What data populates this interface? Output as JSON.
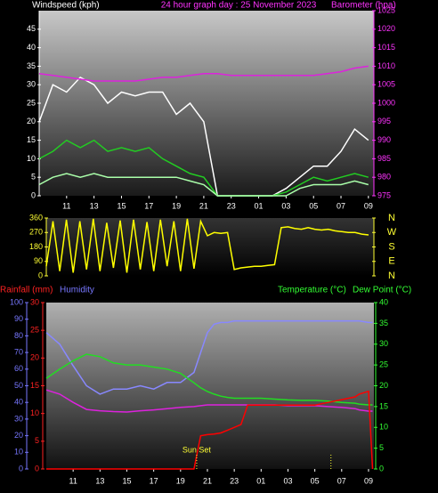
{
  "chart_data": [
    {
      "type": "line",
      "y_label": "Windspeed (kph)",
      "title": "24 hour graph day : 25 November 2023",
      "y2_label": "Barometer (hpa)",
      "x": [
        0,
        1,
        2,
        3,
        4,
        5,
        6,
        7,
        8,
        9,
        10,
        11,
        12,
        13,
        14,
        15,
        16,
        17,
        18,
        19,
        20,
        21,
        22,
        23,
        24
      ],
      "xlim": [
        0,
        24.4
      ],
      "xticks": [
        {
          "value": 2,
          "label": "11"
        },
        {
          "value": 4,
          "label": "13"
        },
        {
          "value": 6,
          "label": "15"
        },
        {
          "value": 8,
          "label": "17"
        },
        {
          "value": 10,
          "label": "19"
        },
        {
          "value": 12,
          "label": "21"
        },
        {
          "value": 14,
          "label": "23"
        },
        {
          "value": 16,
          "label": "01"
        },
        {
          "value": 18,
          "label": "03"
        },
        {
          "value": 20,
          "label": "05"
        },
        {
          "value": 22,
          "label": "07"
        },
        {
          "value": 24,
          "label": "09"
        }
      ],
      "ylim": [
        0,
        50
      ],
      "yticks": [
        0,
        5,
        10,
        15,
        20,
        25,
        30,
        35,
        40,
        45
      ],
      "ycolor": "#ffffff",
      "y2lim": [
        975,
        1025
      ],
      "y2ticks": [
        975,
        980,
        985,
        990,
        995,
        1000,
        1005,
        1010,
        1015,
        1020,
        1025
      ],
      "y2color": "#ff33ff",
      "series": [
        {
          "color": "#ffffff",
          "values": [
            20,
            30,
            28,
            32,
            30,
            25,
            28,
            27,
            28,
            28,
            22,
            25,
            20,
            0,
            0,
            0,
            0,
            0,
            2,
            5,
            8,
            8,
            12,
            18,
            15
          ]
        },
        {
          "color": "#22cc22",
          "values": [
            10,
            12,
            15,
            13,
            15,
            12,
            13,
            12,
            13,
            10,
            8,
            6,
            5,
            0,
            0,
            0,
            0,
            0,
            1,
            3,
            5,
            4,
            5,
            6,
            5
          ]
        },
        {
          "color": "#aaffaa",
          "values": [
            3,
            5,
            6,
            5,
            6,
            5,
            5,
            5,
            5,
            5,
            5,
            4,
            3,
            0,
            0,
            0,
            0,
            0,
            0,
            2,
            3,
            3,
            3,
            4,
            3
          ]
        },
        {
          "color": "#dd22dd",
          "axis": "y2",
          "values": [
            1008,
            1007.5,
            1007,
            1006.5,
            1006,
            1006,
            1006,
            1006,
            1006.5,
            1007,
            1007,
            1007.5,
            1008,
            1008,
            1007.5,
            1007.5,
            1007.5,
            1007.5,
            1007.5,
            1007.5,
            1007.5,
            1008,
            1008.5,
            1009.5,
            1010
          ]
        }
      ]
    },
    {
      "type": "line",
      "x": [
        0,
        0.5,
        1,
        1.5,
        2,
        2.5,
        3,
        3.5,
        4,
        4.5,
        5,
        5.5,
        6,
        6.5,
        7,
        7.5,
        8,
        8.5,
        9,
        9.5,
        10,
        10.5,
        11,
        11.5,
        12,
        12.5,
        13,
        13.5,
        14,
        14.5,
        15,
        15.5,
        16,
        16.5,
        17,
        17.5,
        18,
        18.5,
        19,
        19.5,
        20,
        20.5,
        21,
        21.5,
        22,
        22.5,
        23,
        23.5,
        24
      ],
      "xlim": [
        0,
        24.4
      ],
      "ylim": [
        0,
        360
      ],
      "yticks": [
        0,
        90,
        180,
        270,
        360
      ],
      "ycolor": "#ffff33",
      "y2lim": [
        0,
        360
      ],
      "y2ticks": [
        {
          "value": 0,
          "label": "N"
        },
        {
          "value": 90,
          "label": "E"
        },
        {
          "value": 180,
          "label": "S"
        },
        {
          "value": 270,
          "label": "W"
        },
        {
          "value": 360,
          "label": "N"
        }
      ],
      "y2color": "#ffff33",
      "series": [
        {
          "color": "#ffff00",
          "values": [
            60,
            340,
            30,
            350,
            20,
            340,
            40,
            355,
            30,
            330,
            50,
            345,
            20,
            350,
            40,
            335,
            30,
            350,
            60,
            340,
            30,
            355,
            45,
            340,
            250,
            270,
            265,
            270,
            40,
            50,
            55,
            60,
            60,
            65,
            70,
            300,
            305,
            295,
            290,
            300,
            290,
            285,
            290,
            280,
            275,
            270,
            270,
            260,
            255
          ]
        }
      ]
    },
    {
      "type": "line",
      "y_label": "Humidity",
      "y3_label": "Rainfall (mm)",
      "y2_label": "Temperature (°C)",
      "y2_label_b": "Dew Point (°C)",
      "x": [
        0,
        1,
        2,
        3,
        4,
        5,
        6,
        7,
        8,
        9,
        10,
        11,
        11.5,
        12,
        12.5,
        13,
        13.5,
        14,
        14.5,
        15,
        16,
        17,
        18,
        19,
        20,
        21,
        22,
        23,
        23.3,
        24,
        24.3
      ],
      "xlim": [
        0,
        24.4
      ],
      "xticks": [
        {
          "value": 2,
          "label": "11"
        },
        {
          "value": 4,
          "label": "13"
        },
        {
          "value": 6,
          "label": "15"
        },
        {
          "value": 8,
          "label": "17"
        },
        {
          "value": 10,
          "label": "19"
        },
        {
          "value": 12,
          "label": "21"
        },
        {
          "value": 14,
          "label": "23"
        },
        {
          "value": 16,
          "label": "01"
        },
        {
          "value": 18,
          "label": "03"
        },
        {
          "value": 20,
          "label": "05"
        },
        {
          "value": 22,
          "label": "07"
        },
        {
          "value": 24,
          "label": "09"
        }
      ],
      "ylim": [
        0,
        100
      ],
      "yticks": [
        0,
        10,
        20,
        30,
        40,
        50,
        60,
        70,
        80,
        90,
        100
      ],
      "ycolor": "#7777ff",
      "y3lim": [
        0,
        30
      ],
      "y3ticks": [
        0,
        5,
        10,
        15,
        20,
        25,
        30
      ],
      "y3color": "#ff2222",
      "y2lim": [
        0,
        40
      ],
      "y2ticks": [
        0,
        5,
        10,
        15,
        20,
        25,
        30,
        35,
        40
      ],
      "y2color": "#33ff33",
      "series": [
        {
          "color": "#8888ff",
          "values": [
            82,
            75,
            62,
            50,
            45,
            48,
            48,
            50,
            48,
            52,
            52,
            58,
            70,
            82,
            87,
            88,
            88,
            89,
            89,
            89,
            89,
            89,
            89,
            89,
            89,
            89,
            89,
            89,
            89,
            88,
            88
          ]
        },
        {
          "color": "#22dd22",
          "axis": "y2",
          "values": [
            21.8,
            24,
            26,
            27.6,
            27,
            25.5,
            25,
            25,
            24.5,
            24,
            23,
            20.7,
            19.5,
            18.6,
            18,
            17.5,
            17.2,
            17,
            17,
            17,
            17,
            16.8,
            16.6,
            16.5,
            16.5,
            16.3,
            16,
            15.8,
            15.6,
            15.4,
            15.4
          ]
        },
        {
          "color": "#dd22dd",
          "axis": "y2",
          "values": [
            19,
            18,
            16,
            14.3,
            14,
            13.8,
            13.7,
            14,
            14.2,
            14.5,
            14.8,
            15,
            15.2,
            15.4,
            15.4,
            15.4,
            15.4,
            15.4,
            15.4,
            15.4,
            15.4,
            15.4,
            15.2,
            15.2,
            15.2,
            15,
            14.8,
            14.5,
            14.2,
            13.9,
            13.9
          ]
        },
        {
          "color": "#ff0000",
          "axis": "y3",
          "values": [
            0,
            0,
            0,
            0,
            0,
            0,
            0,
            0,
            0,
            0,
            0,
            0,
            6,
            6.2,
            6.3,
            6.5,
            7,
            7.5,
            8,
            11.5,
            11.5,
            11.5,
            11.5,
            11.5,
            11.5,
            12,
            12.5,
            13,
            13.5,
            14,
            0
          ]
        }
      ],
      "annotations": [
        {
          "text": "Sun Set",
          "x": 11.2
        },
        {
          "x": 21.2
        }
      ]
    }
  ]
}
